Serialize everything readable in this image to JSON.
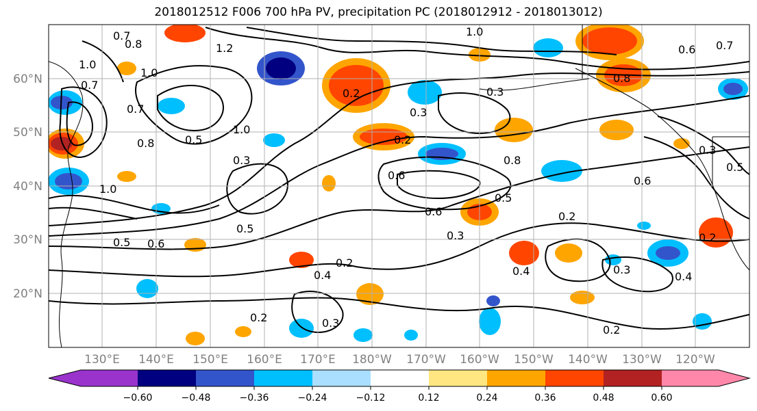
{
  "title": "2018012512 F006 700 hPa PV, precipitation PC (2018012912 - 2018013012)",
  "lat_labels": [
    "60°N",
    "50°N",
    "40°N",
    "30°N",
    "20°N"
  ],
  "lon_labels": [
    "130°E",
    "140°E",
    "150°E",
    "160°E",
    "170°E",
    "180°W",
    "170°W",
    "160°W",
    "150°W",
    "140°W",
    "130°W",
    "120°W"
  ],
  "colorbar": {
    "ticks": [
      "−0.60",
      "−0.48",
      "−0.36",
      "−0.24",
      "−0.12",
      "0.12",
      "0.24",
      "0.36",
      "0.48",
      "0.60"
    ],
    "colors": [
      "#9933cc",
      "#000080",
      "#3355cc",
      "#00bfff",
      "#aadfff",
      "#ffffff",
      "#ffe680",
      "#ffa500",
      "#ff4500",
      "#b22222",
      "#ff88aa"
    ]
  },
  "contour_labels": [
    "0.7",
    "0.8",
    "1.0",
    "1.2",
    "1.0",
    "1.0",
    "0.7",
    "0.8",
    "0.5",
    "1.0",
    "0.3",
    "0.7",
    "1.0",
    "0.5",
    "0.6",
    "0.5",
    "0.2",
    "0.4",
    "0.3",
    "0.2",
    "0.2",
    "0.6",
    "0.2",
    "0.3",
    "0.6",
    "0.3",
    "0.2",
    "0.8",
    "0.5",
    "0.3",
    "0.2",
    "0.4",
    "0.3",
    "0.4",
    "0.2",
    "0.6",
    "0.8",
    "0.6",
    "0.7",
    "0.5",
    "0.3"
  ]
}
